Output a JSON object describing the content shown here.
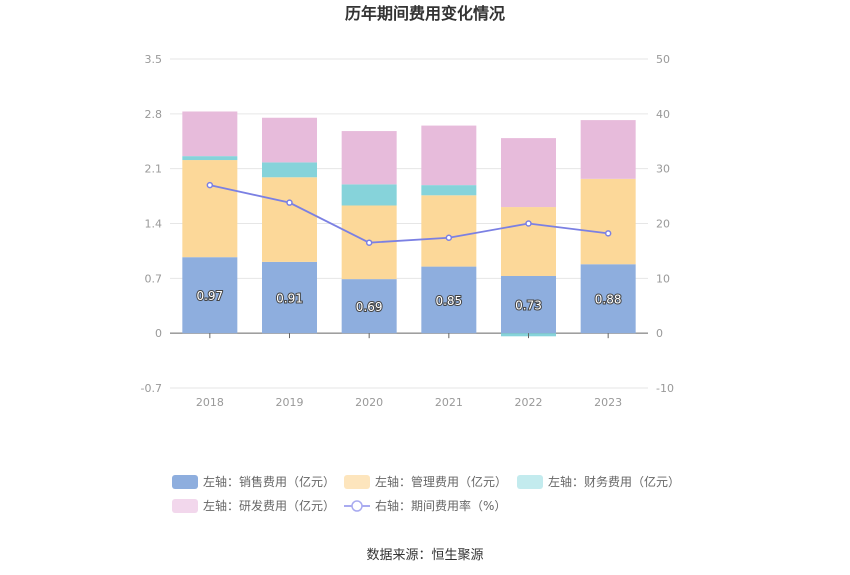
{
  "chart_data": {
    "type": "bar",
    "title": "历年期间费用变化情况",
    "categories": [
      "2018",
      "2019",
      "2020",
      "2021",
      "2022",
      "2023"
    ],
    "stacked": true,
    "left_axis": {
      "ticks": [
        "3.5",
        "2.8",
        "2.1",
        "1.4",
        "0.7",
        "0",
        "-0.7"
      ],
      "ylim": [
        -0.7,
        3.5
      ]
    },
    "right_axis": {
      "ticks": [
        "50",
        "40",
        "30",
        "20",
        "10",
        "0",
        "-10"
      ],
      "ylim": [
        -10,
        50
      ]
    },
    "series": [
      {
        "name": "左轴：销售费用（亿元）",
        "axis": "left",
        "color": "#8eaede",
        "values": [
          0.97,
          0.91,
          0.69,
          0.85,
          0.73,
          0.88
        ],
        "labels": [
          "0.97",
          "0.91",
          "0.69",
          "0.85",
          "0.73",
          "0.88"
        ]
      },
      {
        "name": "左轴：管理费用（亿元）",
        "axis": "left",
        "color": "#fcd899",
        "values": [
          1.24,
          1.08,
          0.94,
          0.91,
          0.88,
          1.09
        ]
      },
      {
        "name": "左轴：财务费用（亿元）",
        "axis": "left",
        "color": "#86d3da",
        "values": [
          0.05,
          0.19,
          0.27,
          0.13,
          -0.04,
          0
        ]
      },
      {
        "name": "左轴：研发费用（亿元）",
        "axis": "left",
        "color": "#e7bbdb",
        "values": [
          0.57,
          0.57,
          0.68,
          0.76,
          0.88,
          0.75
        ]
      },
      {
        "name": "右轴：期间费用率（%）",
        "axis": "right",
        "type": "line",
        "color": "#7b80e3",
        "values": [
          27.0,
          23.8,
          16.5,
          17.4,
          20.0,
          18.2
        ]
      }
    ],
    "legend_position": "bottom",
    "legend_colors": [
      "#8eaede",
      "#fde5bd",
      "#c3ebee",
      "#f2d7ec",
      "#a9abf0"
    ],
    "grid": true
  },
  "source": "数据来源：恒生聚源"
}
